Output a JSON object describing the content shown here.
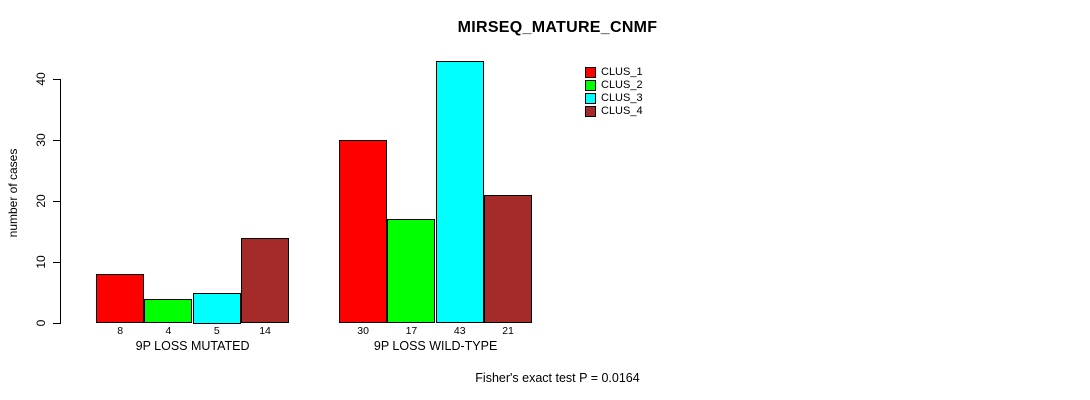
{
  "chart_data": {
    "type": "bar",
    "title": "MIRSEQ_MATURE_CNMF",
    "ylabel": "number of cases",
    "xlabel": "",
    "categories": [
      "9P LOSS MUTATED",
      "9P LOSS WILD-TYPE"
    ],
    "series": [
      {
        "name": "CLUS_1",
        "color": "#ff0000",
        "values": [
          8,
          30
        ]
      },
      {
        "name": "CLUS_2",
        "color": "#00ff00",
        "values": [
          4,
          17
        ]
      },
      {
        "name": "CLUS_3",
        "color": "#00ffff",
        "values": [
          5,
          43
        ]
      },
      {
        "name": "CLUS_4",
        "color": "#a52a2a",
        "values": [
          14,
          21
        ]
      }
    ],
    "bar_value_labels": [
      [
        "8",
        "4",
        "5",
        "14"
      ],
      [
        "30",
        "17",
        "43",
        "21"
      ]
    ],
    "yticks": [
      0,
      10,
      20,
      30,
      40
    ],
    "ylim": [
      0,
      43
    ],
    "grid": false,
    "legend_position": "inside-top-center-right",
    "legend_entries": [
      "CLUS_1",
      "CLUS_2",
      "CLUS_3",
      "CLUS_4"
    ],
    "annotation": "Fisher's exact test P = 0.0164"
  },
  "colors": {
    "background": "#ffffff",
    "axis": "#000000",
    "text": "#000000"
  }
}
